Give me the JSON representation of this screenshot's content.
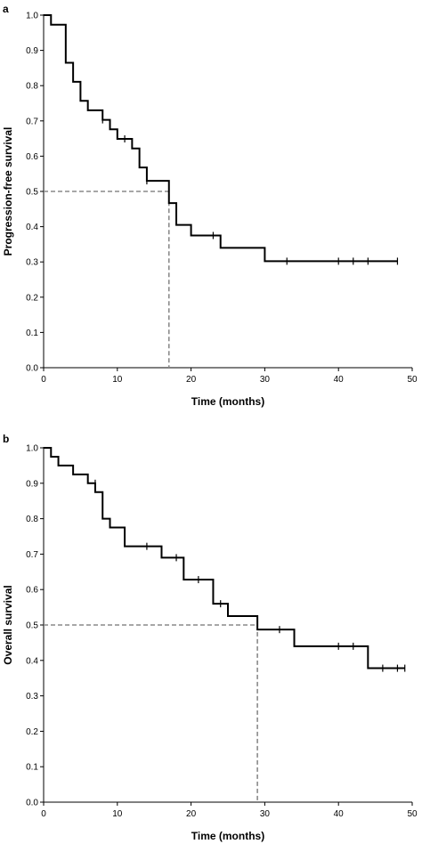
{
  "colors": {
    "curve": "#000000",
    "median_line": "#8a8a8a",
    "axis": "#000000"
  },
  "chart_data": [
    {
      "type": "line",
      "style": "step",
      "panel_label": "a",
      "xlabel": "Time (months)",
      "ylabel": "Progression-free survival",
      "xlim": [
        0,
        50
      ],
      "ylim": [
        0,
        1.0
      ],
      "xticks": [
        "0",
        "10",
        "20",
        "30",
        "40",
        "50"
      ],
      "yticks": [
        "0.0",
        "0.1",
        "0.2",
        "0.3",
        "0.4",
        "0.5",
        "0.6",
        "0.7",
        "0.8",
        "0.9",
        "1.0"
      ],
      "grid": false,
      "series": [
        {
          "steps": [
            [
              0,
              1.0
            ],
            [
              1,
              0.973
            ],
            [
              3,
              0.865
            ],
            [
              4,
              0.811
            ],
            [
              5,
              0.757
            ],
            [
              6,
              0.73
            ],
            [
              8,
              0.703
            ],
            [
              9,
              0.676
            ],
            [
              10,
              0.649
            ],
            [
              12,
              0.622
            ],
            [
              13,
              0.568
            ],
            [
              14,
              0.53
            ],
            [
              17,
              0.467
            ],
            [
              18,
              0.405
            ],
            [
              20,
              0.375
            ],
            [
              24,
              0.34
            ],
            [
              30,
              0.302
            ],
            [
              48,
              0.302
            ]
          ],
          "censored": [
            [
              8,
              0.703
            ],
            [
              11,
              0.649
            ],
            [
              14,
              0.53
            ],
            [
              23,
              0.375
            ],
            [
              33,
              0.302
            ],
            [
              40,
              0.302
            ],
            [
              42,
              0.302
            ],
            [
              44,
              0.302
            ],
            [
              48,
              0.302
            ]
          ]
        }
      ],
      "median": {
        "x": 17,
        "y": 0.5
      }
    },
    {
      "type": "line",
      "style": "step",
      "panel_label": "b",
      "xlabel": "Time (months)",
      "ylabel": "Overall survival",
      "xlim": [
        0,
        50
      ],
      "ylim": [
        0,
        1.0
      ],
      "xticks": [
        "0",
        "10",
        "20",
        "30",
        "40",
        "50"
      ],
      "yticks": [
        "0.0",
        "0.1",
        "0.2",
        "0.3",
        "0.4",
        "0.5",
        "0.6",
        "0.7",
        "0.8",
        "0.9",
        "1.0"
      ],
      "grid": false,
      "series": [
        {
          "steps": [
            [
              0,
              1.0
            ],
            [
              1,
              0.975
            ],
            [
              2,
              0.95
            ],
            [
              4,
              0.925
            ],
            [
              6,
              0.9
            ],
            [
              7,
              0.875
            ],
            [
              8,
              0.8
            ],
            [
              9,
              0.775
            ],
            [
              11,
              0.722
            ],
            [
              16,
              0.69
            ],
            [
              19,
              0.628
            ],
            [
              23,
              0.56
            ],
            [
              25,
              0.525
            ],
            [
              29,
              0.487
            ],
            [
              34,
              0.44
            ],
            [
              44,
              0.378
            ],
            [
              49,
              0.378
            ]
          ],
          "censored": [
            [
              7,
              0.9
            ],
            [
              14,
              0.722
            ],
            [
              18,
              0.69
            ],
            [
              21,
              0.628
            ],
            [
              24,
              0.56
            ],
            [
              32,
              0.487
            ],
            [
              40,
              0.44
            ],
            [
              42,
              0.44
            ],
            [
              46,
              0.378
            ],
            [
              48,
              0.378
            ],
            [
              49,
              0.378
            ]
          ]
        }
      ],
      "median": {
        "x": 29,
        "y": 0.5
      }
    }
  ]
}
